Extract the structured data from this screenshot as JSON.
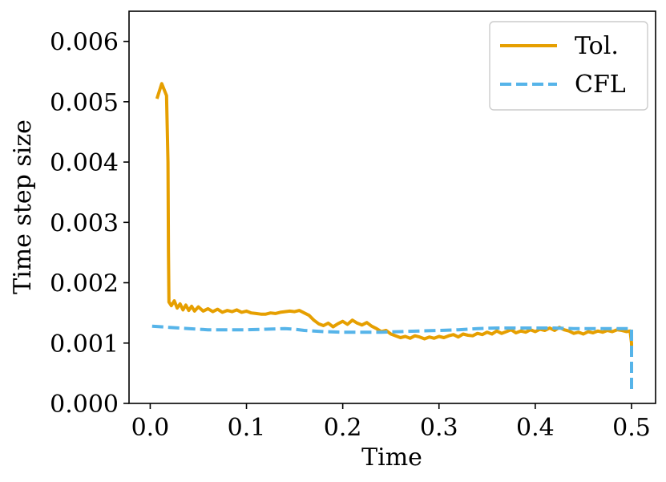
{
  "chart_data": {
    "type": "line",
    "xlabel": "Time",
    "ylabel": "Time step size",
    "xlim": [
      -0.022,
      0.525
    ],
    "ylim": [
      0.0,
      0.0065
    ],
    "xticks": [
      0.0,
      0.1,
      0.2,
      0.3,
      0.4,
      0.5
    ],
    "xtick_labels": [
      "0.0",
      "0.1",
      "0.2",
      "0.3",
      "0.4",
      "0.5"
    ],
    "yticks": [
      0.0,
      0.001,
      0.002,
      0.003,
      0.004,
      0.005,
      0.006
    ],
    "ytick_labels": [
      "0.000",
      "0.001",
      "0.002",
      "0.003",
      "0.004",
      "0.005",
      "0.006"
    ],
    "grid": false,
    "legend_position": "top-right",
    "series": [
      {
        "name": "Tol.",
        "color": "#E69F00",
        "dash": "solid",
        "x": [
          0.007,
          0.012,
          0.017,
          0.0185,
          0.019,
          0.0195,
          0.022,
          0.025,
          0.028,
          0.031,
          0.034,
          0.037,
          0.04,
          0.043,
          0.046,
          0.05,
          0.055,
          0.06,
          0.065,
          0.07,
          0.075,
          0.08,
          0.085,
          0.09,
          0.095,
          0.1,
          0.105,
          0.11,
          0.115,
          0.12,
          0.125,
          0.13,
          0.135,
          0.14,
          0.145,
          0.15,
          0.155,
          0.16,
          0.165,
          0.17,
          0.175,
          0.18,
          0.185,
          0.19,
          0.195,
          0.2,
          0.205,
          0.21,
          0.215,
          0.22,
          0.225,
          0.23,
          0.235,
          0.24,
          0.245,
          0.25,
          0.255,
          0.26,
          0.265,
          0.27,
          0.275,
          0.28,
          0.285,
          0.29,
          0.295,
          0.3,
          0.305,
          0.31,
          0.315,
          0.32,
          0.325,
          0.33,
          0.335,
          0.34,
          0.345,
          0.35,
          0.355,
          0.36,
          0.365,
          0.37,
          0.375,
          0.38,
          0.385,
          0.39,
          0.395,
          0.4,
          0.405,
          0.41,
          0.415,
          0.42,
          0.425,
          0.43,
          0.435,
          0.44,
          0.445,
          0.45,
          0.455,
          0.46,
          0.465,
          0.47,
          0.475,
          0.48,
          0.485,
          0.49,
          0.495,
          0.4985,
          0.5,
          0.5
        ],
        "y": [
          0.00505,
          0.0053,
          0.0051,
          0.004,
          0.0025,
          0.00168,
          0.00162,
          0.0017,
          0.00158,
          0.00165,
          0.00155,
          0.00163,
          0.00154,
          0.00161,
          0.00153,
          0.0016,
          0.00153,
          0.00157,
          0.00152,
          0.00156,
          0.00151,
          0.00154,
          0.00152,
          0.00155,
          0.00151,
          0.00153,
          0.0015,
          0.00149,
          0.00148,
          0.00148,
          0.0015,
          0.00149,
          0.00151,
          0.00152,
          0.00153,
          0.00152,
          0.00154,
          0.0015,
          0.00146,
          0.00138,
          0.00132,
          0.00129,
          0.00133,
          0.00127,
          0.00132,
          0.00136,
          0.00131,
          0.00138,
          0.00133,
          0.0013,
          0.00134,
          0.00128,
          0.00124,
          0.00119,
          0.00121,
          0.00115,
          0.00112,
          0.00109,
          0.00111,
          0.00108,
          0.00112,
          0.0011,
          0.00107,
          0.0011,
          0.00108,
          0.00111,
          0.00109,
          0.00112,
          0.00114,
          0.0011,
          0.00115,
          0.00113,
          0.00112,
          0.00116,
          0.00114,
          0.00118,
          0.00115,
          0.0012,
          0.00116,
          0.00119,
          0.00122,
          0.00117,
          0.0012,
          0.00118,
          0.00122,
          0.00119,
          0.00123,
          0.00121,
          0.00125,
          0.00121,
          0.00126,
          0.00122,
          0.0012,
          0.00116,
          0.00118,
          0.00115,
          0.00119,
          0.00117,
          0.0012,
          0.00118,
          0.00121,
          0.00119,
          0.00122,
          0.00121,
          0.00119,
          0.0012,
          0.001,
          0.0008
        ]
      },
      {
        "name": "CFL",
        "color": "#56B4E9",
        "dash": "dashed",
        "x": [
          0.002,
          0.02,
          0.04,
          0.06,
          0.08,
          0.1,
          0.12,
          0.14,
          0.15,
          0.16,
          0.18,
          0.2,
          0.22,
          0.24,
          0.26,
          0.28,
          0.3,
          0.32,
          0.34,
          0.36,
          0.38,
          0.4,
          0.42,
          0.44,
          0.46,
          0.48,
          0.5,
          0.5
        ],
        "y": [
          0.00128,
          0.00126,
          0.00124,
          0.00122,
          0.00122,
          0.00122,
          0.00123,
          0.00124,
          0.00123,
          0.00121,
          0.00119,
          0.00118,
          0.00118,
          0.00118,
          0.00119,
          0.0012,
          0.00121,
          0.00122,
          0.00124,
          0.00125,
          0.00125,
          0.00125,
          0.00125,
          0.00124,
          0.00124,
          0.00124,
          0.00124,
          0.0002
        ]
      }
    ]
  }
}
